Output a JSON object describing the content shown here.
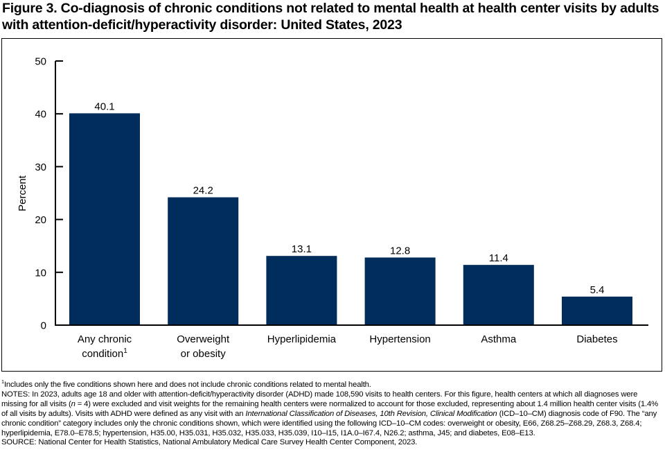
{
  "title": "Figure 3. Co-diagnosis of chronic conditions not related to mental health at health center visits by adults with attention-deficit/hyperactivity disorder: United States, 2023",
  "chart_data": {
    "type": "bar",
    "title": "Figure 3. Co-diagnosis of chronic conditions not related to mental health at health center visits by adults with attention-deficit/hyperactivity disorder: United States, 2023",
    "categories": [
      "Any chronic condition",
      "Overweight or obesity",
      "Hyperlipidemia",
      "Hypertension",
      "Asthma",
      "Diabetes"
    ],
    "category_lines": [
      [
        "Any chronic",
        "condition"
      ],
      [
        "Overweight",
        "or obesity"
      ],
      [
        "Hyperlipidemia"
      ],
      [
        "Hypertension"
      ],
      [
        "Asthma"
      ],
      [
        "Diabetes"
      ]
    ],
    "category_superscripts": [
      "1",
      "",
      "",
      "",
      "",
      ""
    ],
    "values": [
      40.1,
      24.2,
      13.1,
      12.8,
      11.4,
      5.4
    ],
    "data_labels": [
      "40.1",
      "24.2",
      "13.1",
      "12.8",
      "11.4",
      "5.4"
    ],
    "xlabel": "",
    "ylabel": "Percent",
    "ylim": [
      0,
      50
    ],
    "yticks": [
      0,
      10,
      20,
      30,
      40,
      50
    ],
    "grid": false,
    "bar_color": "#002d5c"
  },
  "notes": {
    "footnote_mark": "1",
    "footnote": "Includes only the five conditions shown here and does not include chronic conditions related to mental health.",
    "notes_1": "NOTES: In 2023, adults age 18 and older with attention-deficit/hyperactivity disorder (ADHD) made 108,590 visits to health centers. For this figure, health centers at which all diagnoses were missing for all visits (",
    "notes_n": "n",
    "notes_2": " = 4) were excluded and visit weights for the remaining health centers were normalized to account for those excluded, representing about 1.4 million health center visits (1.4% of all visits by adults). Visits with ADHD were defined as any visit with an ",
    "notes_icd_italic": "International Classification of Diseases, 10th Revision, Clinical Modification",
    "notes_3": " (ICD–10–CM) diagnosis code of F90. The “any chronic condition” category includes only the chronic conditions shown, which were identified using the following ICD–10–CM codes: overweight or obesity, E66, Z68.25–Z68.29, Z68.3, Z68.4; hyperlipidemia, E78.0–E78.5; hypertension, H35.00, H35.031, H35.032, H35.033, H35.039, I10–I15, I1A.0–I67.4, N26.2; asthma, J45; and diabetes, E08–E13.",
    "source": "SOURCE: National Center for Health Statistics, National Ambulatory Medical Care Survey Health Center Component, 2023."
  }
}
